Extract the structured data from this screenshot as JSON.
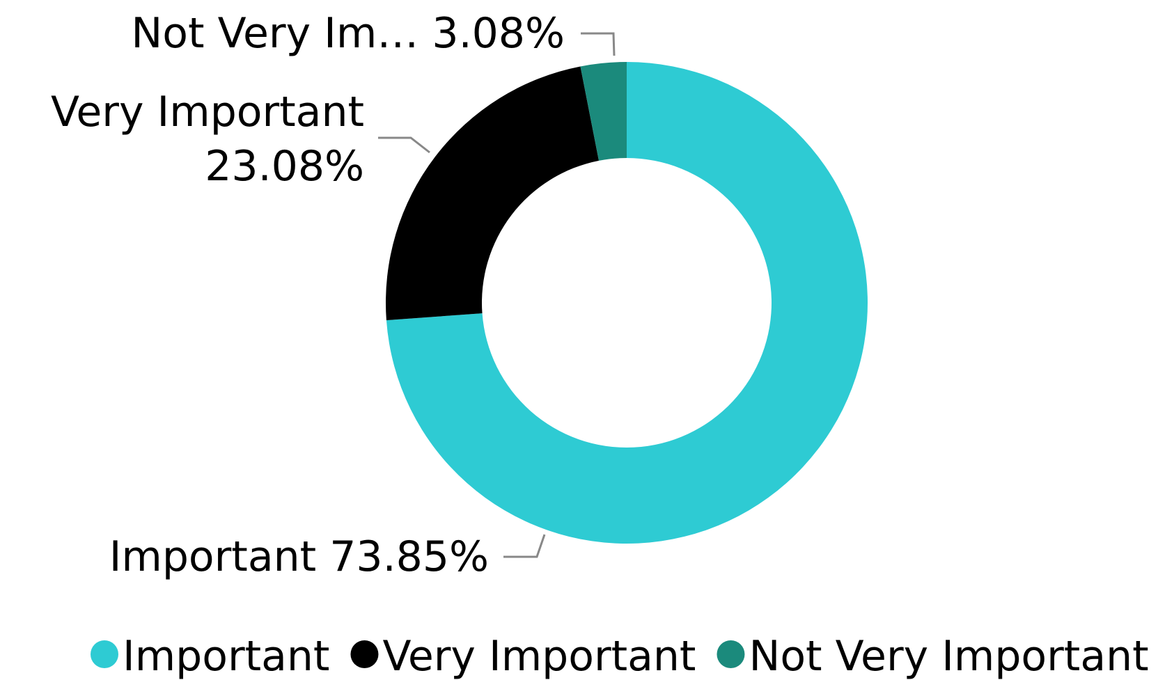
{
  "chart_data": {
    "type": "pie",
    "categories": [
      "Important",
      "Very Important",
      "Not Very Important"
    ],
    "values": [
      73.85,
      23.08,
      3.08
    ],
    "value_labels": [
      "73.85%",
      "23.08%",
      "3.08%"
    ],
    "label_names": [
      "Important",
      "Very Important",
      "Not Very Im…"
    ],
    "colors": [
      "#2ecbd3",
      "#000000",
      "#1b8a7c"
    ],
    "legend": "bottom"
  }
}
